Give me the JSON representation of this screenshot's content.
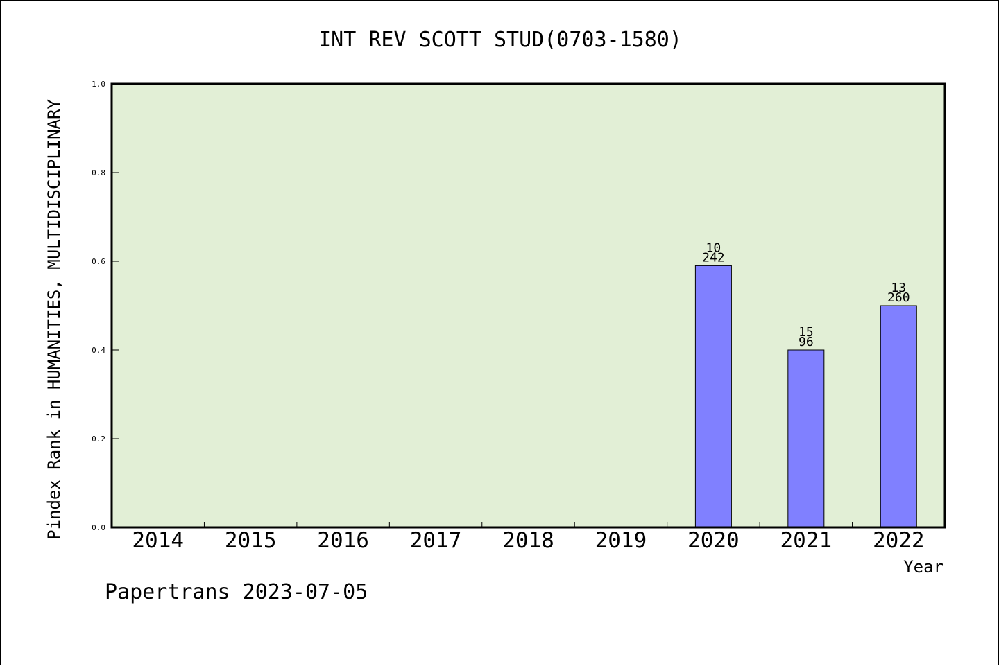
{
  "chart_data": {
    "type": "bar",
    "title": "INT REV SCOTT STUD(0703-1580)",
    "xlabel": "Year",
    "ylabel": "Pindex Rank in HUMANITIES, MULTIDISCIPLINARY",
    "categories": [
      "2014",
      "2015",
      "2016",
      "2017",
      "2018",
      "2019",
      "2020",
      "2021",
      "2022"
    ],
    "values": [
      null,
      null,
      null,
      null,
      null,
      null,
      0.59,
      0.4,
      0.5
    ],
    "bar_labels": [
      {
        "year": "2020",
        "rank": "10",
        "total": "242"
      },
      {
        "year": "2021",
        "rank": "15",
        "total": "96"
      },
      {
        "year": "2022",
        "rank": "13",
        "total": "260"
      }
    ],
    "ylim": [
      0,
      1.0
    ],
    "yticks": [
      "0.0",
      "0.2",
      "0.4",
      "0.6",
      "0.8",
      "1.0"
    ],
    "grid": false,
    "colors": {
      "plot_bg": "#e2efd6",
      "bar": "#8080ff",
      "bar_edge": "#000000"
    }
  },
  "footer": "Papertrans 2023-07-05"
}
